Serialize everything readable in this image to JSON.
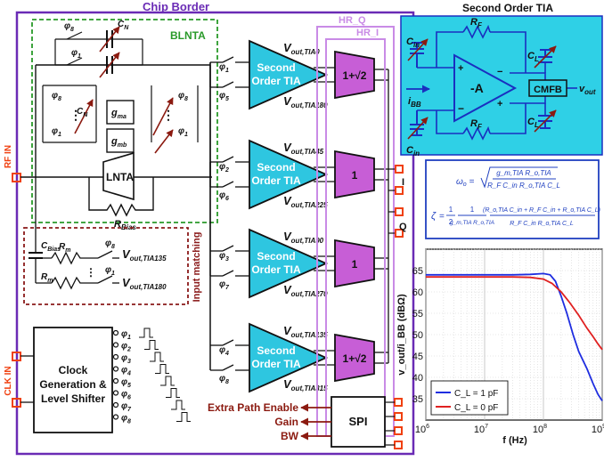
{
  "chip": {
    "border_label": "Chip Border",
    "hr_q_label": "HR_Q",
    "hr_i_label": "HR_I",
    "blnta_label": "BLNTA",
    "input_matching_label": "Input matching",
    "rf_in": "RF IN",
    "clk_in": "CLK IN",
    "lnta_label": "LNTA",
    "rbias_label": "R",
    "rbias_sub": "Bias",
    "cbias_label": "C",
    "cbias_sub": "Bias",
    "gma": "g",
    "gma_sub": "ma",
    "gmb": "g",
    "gmb_sub": "mb",
    "cn_label": "C",
    "cn_sub": "N",
    "phi": "φ",
    "phi8": "8",
    "phi1": "1",
    "rm_label": "R",
    "rm_sub": "m",
    "vout_in135": "out,TIA135",
    "vout_in180": "out,TIA180",
    "v": "V",
    "tia_label_1": "Second",
    "tia_label_2": "Order TIA",
    "tias": [
      {
        "phi_a": "1",
        "phi_b": "5",
        "top": "out,TIA0",
        "bot": "out,TIA180",
        "combiner": "1+√2"
      },
      {
        "phi_a": "2",
        "phi_b": "6",
        "top": "out,TIA45",
        "bot": "out,TIA225",
        "combiner": "1"
      },
      {
        "phi_a": "3",
        "phi_b": "7",
        "top": "out,TIA90",
        "bot": "out,TIA270",
        "combiner": "1"
      },
      {
        "phi_a": "4",
        "phi_b": "8",
        "top": "out,TIA135",
        "bot": "out,TIA315",
        "combiner": "1+√2"
      }
    ],
    "i_label": "I",
    "q_label": "Q",
    "clock_gen": [
      "Clock",
      "Generation &",
      "Level Shifter"
    ],
    "clock_phases": [
      "1",
      "2",
      "3",
      "4",
      "5",
      "6",
      "7",
      "8"
    ],
    "spi_label": "SPI",
    "spi_outputs": [
      "Extra Path Enable",
      "Gain",
      "BW"
    ]
  },
  "tia_schematic": {
    "title": "Second Order TIA",
    "rf": "R",
    "rf_sub": "F",
    "cin": "C",
    "cin_sub": "in",
    "cl": "C",
    "cl_sub": "L",
    "amp": "-A",
    "cmfb": "CMFB",
    "ibb": "i",
    "ibb_sub": "BB",
    "vout": "v",
    "vout_sub": "out",
    "plus": "+",
    "minus": "−"
  },
  "equations": {
    "omega": "ω₀ = √( g_m,TIA R_o,TIA / (R_F C_in R_o,TIA C_L) )",
    "omega_lhs": "ω",
    "omega_lhs_sub": "o",
    "omega_num": "g_m,TIA R_o,TIA",
    "omega_den": "R_F C_in R_o,TIA C_L",
    "zeta_lhs": "ζ",
    "zeta_frac1_num": "1",
    "zeta_frac1_den": "2",
    "zeta_frac2_num": "1",
    "zeta_frac2_den": "g_m,TIA R_o,TIA",
    "zeta_frac3_num": "(R_o,TIA C_in + R_F C_in + R_o,TIA C_L)",
    "zeta_frac3_den": "R_F C_in R_o,TIA C_L"
  },
  "chart_data": {
    "type": "line",
    "title": "",
    "xlabel": "f (Hz)",
    "ylabel": "v_out/i_BB (dBΩ)",
    "x_scale": "log",
    "xlim": [
      1000000,
      1000000000
    ],
    "ylim": [
      30,
      70
    ],
    "x_tick_labels": [
      "10^6",
      "10^7",
      "10^8",
      "10^9"
    ],
    "y_ticks": [
      35,
      40,
      45,
      50,
      55,
      60,
      65,
      70
    ],
    "grid": true,
    "legend_position": "bottom-left",
    "series": [
      {
        "name": "C_L = 1 pF",
        "color": "#1e2de0",
        "x": [
          1000000,
          3000000,
          10000000,
          30000000,
          60000000,
          100000000,
          130000000,
          160000000,
          200000000,
          250000000,
          320000000,
          400000000,
          550000000,
          700000000,
          850000000,
          1000000000
        ],
        "y": [
          64,
          64,
          64,
          64,
          64.1,
          64.3,
          64.0,
          62.5,
          59,
          55,
          50,
          46,
          42,
          38.5,
          36,
          34.5
        ]
      },
      {
        "name": "C_L = 0 pF",
        "color": "#e02020",
        "x": [
          1000000,
          3000000,
          10000000,
          30000000,
          60000000,
          100000000,
          140000000,
          200000000,
          280000000,
          400000000,
          550000000,
          700000000,
          850000000,
          1000000000
        ],
        "y": [
          63.5,
          63.5,
          63.5,
          63.5,
          63.4,
          63.0,
          62.0,
          60,
          57.5,
          54.5,
          51.5,
          49.5,
          47.8,
          46.5
        ]
      }
    ],
    "legend": [
      "C_L = 1 pF",
      "C_L = 0 pF"
    ]
  },
  "colors": {
    "chip_border": "#6a2bb5",
    "tia_fill": "#2ec6e0",
    "combiner_fill": "#c75ed6",
    "hr_box": "#c98be6",
    "blnta_border": "#2a9a2a",
    "input_match_border": "#8a1a1a",
    "pad": "#f04010",
    "schematic_bg": "#2fd0e6",
    "wire_blue": "#1a2fc0",
    "dark_red": "#8b1a10",
    "eq_border": "#2040c0"
  }
}
